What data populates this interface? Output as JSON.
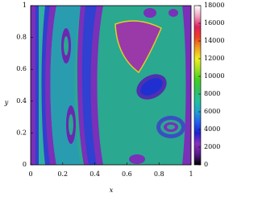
{
  "chart_data": {
    "type": "heatmap",
    "x_label": "x",
    "y_label": "y",
    "xlim": [
      0,
      1
    ],
    "xticks": [
      0,
      0.2,
      0.4,
      0.6,
      0.8,
      1
    ],
    "ylim": [
      0,
      1
    ],
    "yticks": [
      0,
      0.2,
      0.4,
      0.6,
      0.8,
      1
    ],
    "colorbar": {
      "lim": [
        0,
        18000
      ],
      "ticks": [
        0,
        2000,
        4000,
        6000,
        8000,
        10000,
        12000,
        14000,
        16000,
        18000
      ],
      "colors": [
        "#000000",
        "#5a1a8c",
        "#8a2fc0",
        "#2020d0",
        "#2060f0",
        "#20a0d0",
        "#20c0a0",
        "#30c060",
        "#40d020",
        "#a0e020",
        "#f0f020",
        "#f0a020",
        "#f04020",
        "#e02060",
        "#f0a0c0",
        "#ffffff"
      ]
    }
  }
}
